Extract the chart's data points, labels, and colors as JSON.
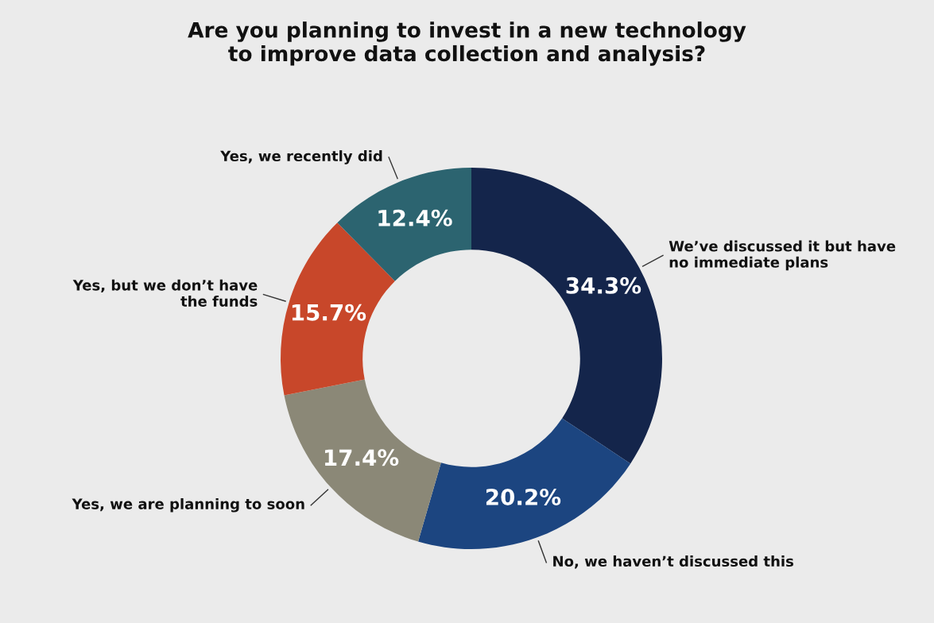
{
  "chart_data": {
    "type": "donut",
    "title": "Are you planning to invest in a new technology\nto improve data collection and analysis?",
    "categories": [
      "We’ve discussed it but have\nno immediate plans",
      "No, we haven’t discussed this",
      "Yes, we are planning to soon",
      "Yes, but we don’t have\nthe funds",
      "Yes, we recently did"
    ],
    "values": [
      34.3,
      20.2,
      17.4,
      15.7,
      12.4
    ],
    "value_labels": [
      "34.3%",
      "20.2%",
      "17.4%",
      "15.7%",
      "12.4%"
    ],
    "colors": [
      "#14254b",
      "#1c4580",
      "#8b8877",
      "#c8472a",
      "#2c6470"
    ],
    "legend": false
  }
}
